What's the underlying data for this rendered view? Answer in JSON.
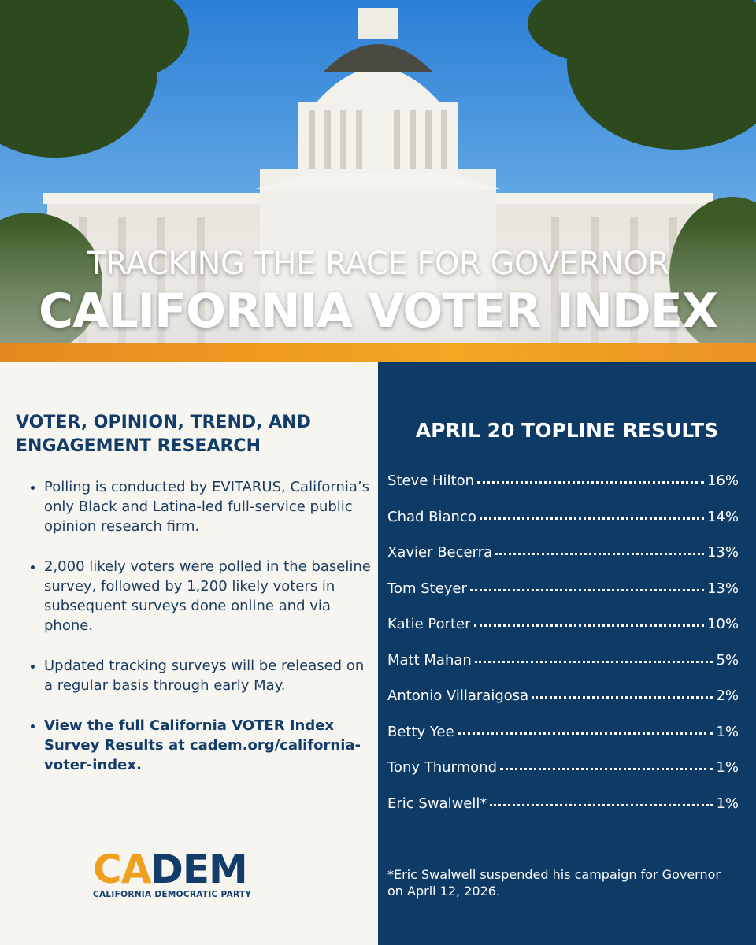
{
  "header": {
    "kicker": "TRACKING THE RACE FOR GOVERNOR",
    "title": "CALIFORNIA VOTER INDEX"
  },
  "info": {
    "heading": "VOTER, OPINION, TREND, AND ENGAGEMENT RESEARCH",
    "bullets": [
      "Polling is conducted by EVITARUS, California’s only Black and Latina-led full-service public opinion research firm.",
      "2,000 likely voters were polled in the baseline survey, followed by 1,200 likely voters in subsequent surveys done online and via phone.",
      "Updated tracking surveys will be released on a regular basis through early May.",
      "View the full California VOTER Index Survey Results at cadem.org/california-voter-index."
    ]
  },
  "logo": {
    "part1": "CA",
    "part2": "DEM",
    "tagline": "CALIFORNIA DEMOCRATIC PARTY"
  },
  "results": {
    "title": "APRIL 20 TOPLINE RESULTS",
    "rows": [
      {
        "name": "Steve Hilton",
        "value": "16%"
      },
      {
        "name": "Chad Bianco",
        "value": "14%"
      },
      {
        "name": "Xavier Becerra",
        "value": "13%"
      },
      {
        "name": "Tom Steyer",
        "value": "13%"
      },
      {
        "name": "Katie Porter",
        "value": "10%"
      },
      {
        "name": "Matt Mahan",
        "value": "5%"
      },
      {
        "name": "Antonio Villaraigosa",
        "value": "2%"
      },
      {
        "name": "Betty Yee",
        "value": "1%"
      },
      {
        "name": "Tony Thurmond",
        "value": "1%"
      },
      {
        "name": "Eric Swalwell*",
        "value": "1%"
      }
    ],
    "footnote": "*Eric Swalwell suspended his campaign for Governor on April 12, 2026."
  }
}
